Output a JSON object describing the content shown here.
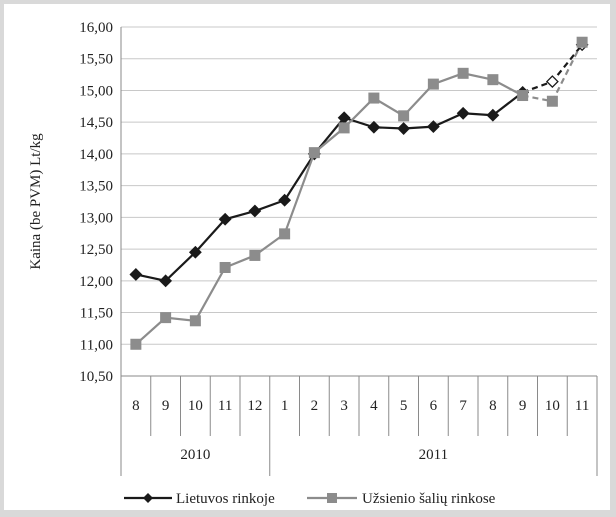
{
  "chart_data": {
    "type": "line",
    "title": "",
    "ylabel": "Kaina (be PVM) Lt/kg",
    "xlabel": "",
    "ylim": [
      10.5,
      16.0
    ],
    "ytick_step": 0.5,
    "ytick_labels": [
      "10,50",
      "11,00",
      "11,50",
      "12,00",
      "12,50",
      "13,00",
      "13,50",
      "14,00",
      "14,50",
      "15,00",
      "15,50",
      "16,00"
    ],
    "categories": [
      "8",
      "9",
      "10",
      "11",
      "12",
      "1",
      "2",
      "3",
      "4",
      "5",
      "6",
      "7",
      "8",
      "9",
      "10",
      "11"
    ],
    "year_groups": [
      {
        "label": "2010",
        "count": 5
      },
      {
        "label": "2011",
        "count": 11
      }
    ],
    "grid": "horizontal",
    "legend_position": "bottom",
    "forecast_from_index": 13,
    "series": [
      {
        "name": "Lietuvos rinkoje",
        "color": "#1a1a1a",
        "marker": "diamond",
        "values": [
          12.1,
          12.0,
          12.45,
          12.97,
          13.1,
          13.27,
          14.0,
          14.57,
          14.42,
          14.4,
          14.43,
          14.64,
          14.61,
          14.97,
          15.14,
          15.72
        ]
      },
      {
        "name": "Užsienio šalių rinkose",
        "color": "#8c8c8c",
        "marker": "square",
        "values": [
          11.0,
          11.42,
          11.37,
          12.21,
          12.4,
          12.74,
          14.02,
          14.41,
          14.88,
          14.6,
          15.1,
          15.27,
          15.17,
          14.92,
          14.83,
          15.76
        ]
      }
    ]
  }
}
